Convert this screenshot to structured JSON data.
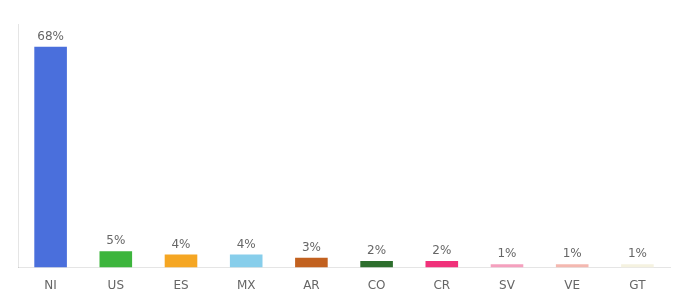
{
  "chart_data": {
    "type": "bar",
    "categories": [
      "NI",
      "US",
      "ES",
      "MX",
      "AR",
      "CO",
      "CR",
      "SV",
      "VE",
      "GT"
    ],
    "values": [
      68,
      5,
      4,
      4,
      3,
      2,
      2,
      1,
      1,
      1
    ],
    "value_labels": [
      "68%",
      "5%",
      "4%",
      "4%",
      "3%",
      "2%",
      "2%",
      "1%",
      "1%",
      "1%"
    ],
    "colors": [
      "#4a6fdc",
      "#3db53d",
      "#f5a623",
      "#87ceeb",
      "#c2611f",
      "#2d6e2d",
      "#f0317a",
      "#f5a0be",
      "#f4b8b0",
      "#f5f2e0"
    ],
    "ylim": [
      0,
      75
    ],
    "data_labels": true,
    "tick_labels": "x",
    "grid": false
  }
}
